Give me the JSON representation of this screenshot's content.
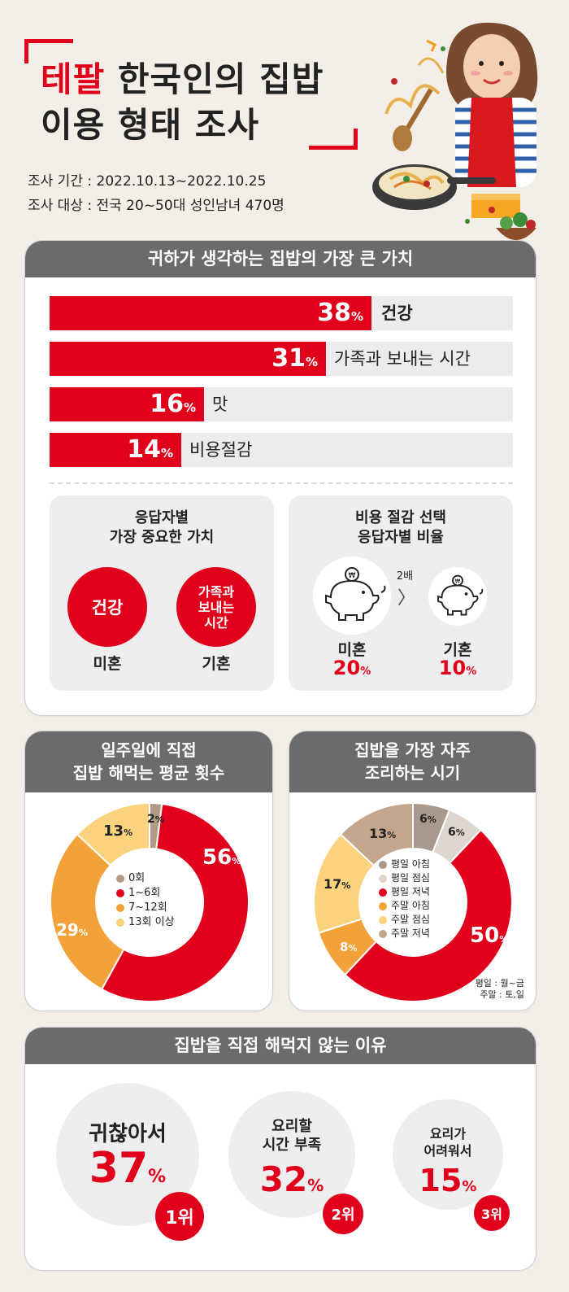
{
  "header": {
    "brand": "테팔",
    "title_line1_rest": " 한국인의 집밥",
    "title_line2": "이용 형태 조사",
    "period": "조사 기간 : 2022.10.13~2022.10.25",
    "target": "조사 대상 : 전국 20~50대 성인남녀 470명"
  },
  "section1": {
    "title": "귀하가 생각하는 집밥의 가장 큰 가치",
    "bars": [
      {
        "value": 38,
        "unit": "%",
        "label": "건강"
      },
      {
        "value": 31,
        "unit": "%",
        "label": "가족과 보내는 시간"
      },
      {
        "value": 16,
        "unit": "%",
        "label": "맛"
      },
      {
        "value": 14,
        "unit": "%",
        "label": "비용절감"
      }
    ],
    "left_box": {
      "title_line1": "응답자별",
      "title_line2": "가장 중요한 가치",
      "circle1": "건강",
      "circle2_line1": "가족과",
      "circle2_line2": "보내는",
      "circle2_line3": "시간",
      "cap1": "미혼",
      "cap2": "기혼"
    },
    "right_box": {
      "title_line1": "비용 절감 선택",
      "title_line2": "응답자별 비율",
      "compare": "2배",
      "cap1": "미혼",
      "cap2": "기혼",
      "pct1": "20",
      "pct2": "10",
      "unit": "%",
      "coin": "₩"
    }
  },
  "section2": {
    "title_line1": "일주일에 직접",
    "title_line2": "집밥 해먹는 평균 횟수",
    "legend": [
      "0회",
      "1~6회",
      "7~12회",
      "13회 이상"
    ],
    "labels": {
      "a": "2",
      "b": "56",
      "c": "29",
      "d": "13",
      "unit": "%"
    },
    "colors": [
      "#b29a85",
      "#e0001b",
      "#f3a23a",
      "#fbd27d"
    ]
  },
  "section3": {
    "title_line1": "집밥을 가장 자주",
    "title_line2": "조리하는 시기",
    "legend": [
      "평일 아침",
      "평일 점심",
      "평일 저녁",
      "주말 아침",
      "주말 점심",
      "주말 저녁"
    ],
    "labels": {
      "a": "6",
      "b": "6",
      "c": "50",
      "d": "8",
      "e": "17",
      "f": "13",
      "unit": "%"
    },
    "colors": [
      "#a8998c",
      "#ddd5ce",
      "#e0001b",
      "#f3a23a",
      "#fbd27d",
      "#c4a68d"
    ],
    "note_line1": "평일 : 월~금",
    "note_line2": "주말 : 토,일"
  },
  "chart_data": [
    {
      "type": "bar",
      "title": "귀하가 생각하는 집밥의 가장 큰 가치",
      "categories": [
        "건강",
        "가족과 보내는 시간",
        "맛",
        "비용절감"
      ],
      "values": [
        38,
        31,
        16,
        14
      ]
    },
    {
      "type": "pie",
      "title": "일주일에 직접 집밥 해먹는 평균 횟수",
      "categories": [
        "0회",
        "1~6회",
        "7~12회",
        "13회 이상"
      ],
      "values": [
        2,
        56,
        29,
        13
      ]
    },
    {
      "type": "pie",
      "title": "집밥을 가장 자주 조리하는 시기",
      "categories": [
        "평일 아침",
        "평일 점심",
        "평일 저녁",
        "주말 아침",
        "주말 점심",
        "주말 저녁"
      ],
      "values": [
        6,
        6,
        50,
        8,
        17,
        13
      ]
    }
  ],
  "section4": {
    "title": "집밥을 직접 해먹지 않는 이유",
    "reasons": [
      {
        "label": "귀찮아서",
        "pct": "37",
        "rank": "1위"
      },
      {
        "label_line1": "요리할",
        "label_line2": "시간 부족",
        "pct": "32",
        "rank": "2위"
      },
      {
        "label_line1": "요리가",
        "label_line2": "어려워서",
        "pct": "15",
        "rank": "3위"
      }
    ],
    "unit": "%"
  }
}
